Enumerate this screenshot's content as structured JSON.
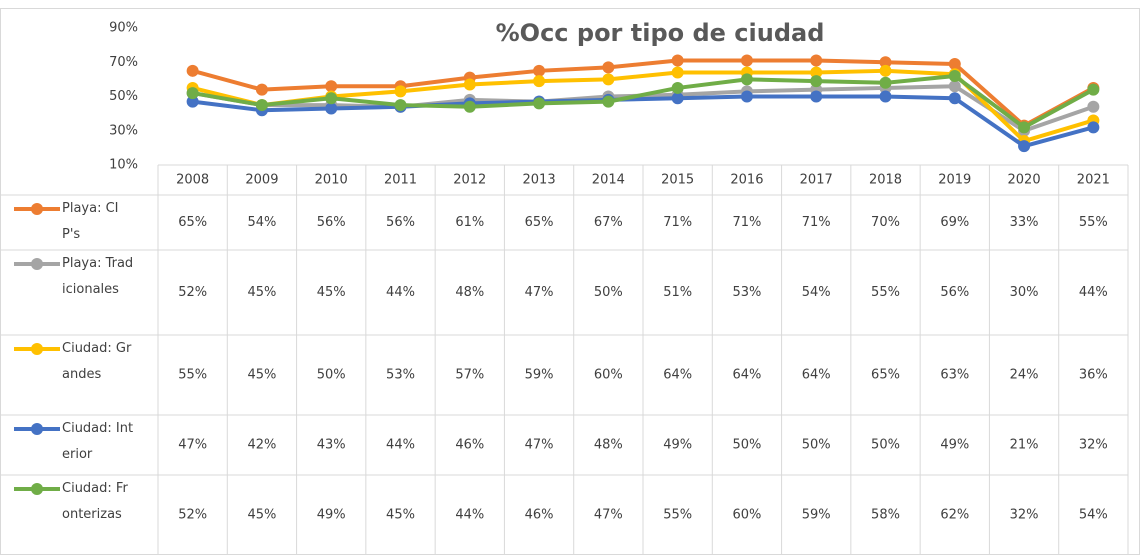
{
  "chart_data": {
    "type": "line",
    "title": "%Occ por tipo de ciudad",
    "categories": [
      "2008",
      "2009",
      "2010",
      "2011",
      "2012",
      "2013",
      "2014",
      "2015",
      "2016",
      "2017",
      "2018",
      "2019",
      "2020",
      "2021"
    ],
    "ylim": [
      10,
      90
    ],
    "yticks": [
      {
        "value": 10,
        "label": "10%"
      },
      {
        "value": 30,
        "label": "30%"
      },
      {
        "value": 50,
        "label": "50%"
      },
      {
        "value": 70,
        "label": "70%"
      },
      {
        "value": 90,
        "label": "90%"
      }
    ],
    "series": [
      {
        "name": "Playa: CIP's",
        "color": "#ed7d31",
        "values": [
          65,
          54,
          56,
          56,
          61,
          65,
          67,
          71,
          71,
          71,
          70,
          69,
          33,
          55
        ],
        "value_labels": [
          "65%",
          "54%",
          "56%",
          "56%",
          "61%",
          "65%",
          "67%",
          "71%",
          "71%",
          "71%",
          "70%",
          "69%",
          "33%",
          "55%"
        ]
      },
      {
        "name": "Playa: Tradicionales",
        "color": "#a5a5a5",
        "values": [
          52,
          45,
          45,
          44,
          48,
          47,
          50,
          51,
          53,
          54,
          55,
          56,
          30,
          44
        ],
        "value_labels": [
          "52%",
          "45%",
          "45%",
          "44%",
          "48%",
          "47%",
          "50%",
          "51%",
          "53%",
          "54%",
          "55%",
          "56%",
          "30%",
          "44%"
        ]
      },
      {
        "name": "Ciudad: Grandes",
        "color": "#ffc000",
        "values": [
          55,
          45,
          50,
          53,
          57,
          59,
          60,
          64,
          64,
          64,
          65,
          63,
          24,
          36
        ],
        "value_labels": [
          "55%",
          "45%",
          "50%",
          "53%",
          "57%",
          "59%",
          "60%",
          "64%",
          "64%",
          "64%",
          "65%",
          "63%",
          "24%",
          "36%"
        ]
      },
      {
        "name": "Ciudad: Interior",
        "color": "#4472c4",
        "values": [
          47,
          42,
          43,
          44,
          46,
          47,
          48,
          49,
          50,
          50,
          50,
          49,
          21,
          32
        ],
        "value_labels": [
          "47%",
          "42%",
          "43%",
          "44%",
          "46%",
          "47%",
          "48%",
          "49%",
          "50%",
          "50%",
          "50%",
          "49%",
          "21%",
          "32%"
        ]
      },
      {
        "name": "Ciudad: Fronterizas",
        "color": "#70ad47",
        "values": [
          52,
          45,
          49,
          45,
          44,
          46,
          47,
          55,
          60,
          59,
          58,
          62,
          32,
          54
        ],
        "value_labels": [
          "52%",
          "45%",
          "49%",
          "45%",
          "44%",
          "46%",
          "47%",
          "55%",
          "60%",
          "59%",
          "58%",
          "62%",
          "32%",
          "54%"
        ]
      }
    ]
  }
}
